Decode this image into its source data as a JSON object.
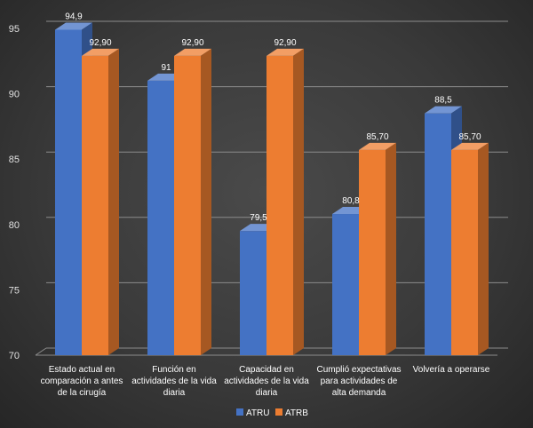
{
  "chart_data": {
    "type": "bar",
    "style": "3d-clustered-column",
    "categories": [
      [
        "Estado actual en",
        "comparación a antes",
        "de la cirugía"
      ],
      [
        "Función en",
        "actividades  de la vida",
        "diaria"
      ],
      [
        "Capacidad en",
        "actividades  de la vida",
        "diaria"
      ],
      [
        "Cumplió expectativas",
        "para actividades  de",
        "alta demanda"
      ],
      [
        "Volvería a operarse"
      ]
    ],
    "series": [
      {
        "name": "ATRU",
        "color": "#4472C4",
        "values": [
          94.9,
          91,
          79.5,
          80.8,
          88.5
        ],
        "labels": [
          "94,9",
          "91",
          "79,5",
          "80,8",
          "88,5"
        ]
      },
      {
        "name": "ATRB",
        "color": "#ED7D31",
        "values": [
          92.9,
          92.9,
          92.9,
          85.7,
          85.7
        ],
        "labels": [
          "92,90",
          "92,90",
          "92,90",
          "85,70",
          "85,70"
        ]
      }
    ],
    "ylim": [
      70,
      95
    ],
    "yticks": [
      70,
      75,
      80,
      85,
      90,
      95
    ],
    "grid": true,
    "legend_position": "bottom-center",
    "title": "",
    "xlabel": "",
    "ylabel": ""
  }
}
